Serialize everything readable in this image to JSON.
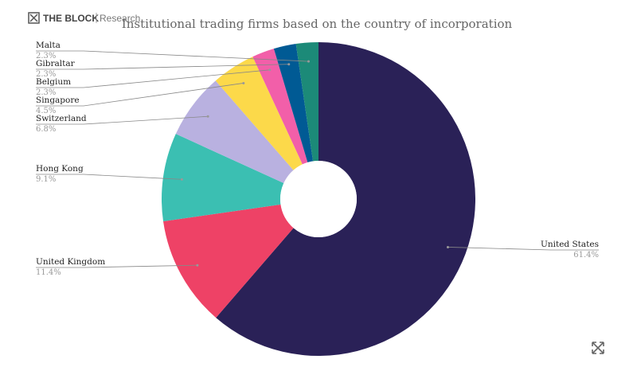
{
  "header": {
    "brand": "THE BLOCK",
    "section": "Research"
  },
  "chart_data": {
    "type": "pie",
    "title": "Institutional trading firms based on the country of incorporation",
    "categories": [
      "United States",
      "United Kingdom",
      "Hong Kong",
      "Switzerland",
      "Singapore",
      "Belgium",
      "Gibraltar",
      "Malta"
    ],
    "values": [
      61.4,
      11.4,
      9.1,
      6.8,
      4.5,
      2.3,
      2.3,
      2.3
    ],
    "value_labels": [
      "61.4%",
      "11.4%",
      "9.1%",
      "6.8%",
      "4.5%",
      "2.3%",
      "2.3%",
      "2.3%"
    ],
    "colors": [
      "#2a2157",
      "#ee4266",
      "#3bbfb2",
      "#b9b1e0",
      "#fcd94a",
      "#f25fa9",
      "#005a94",
      "#1c8a78"
    ]
  }
}
